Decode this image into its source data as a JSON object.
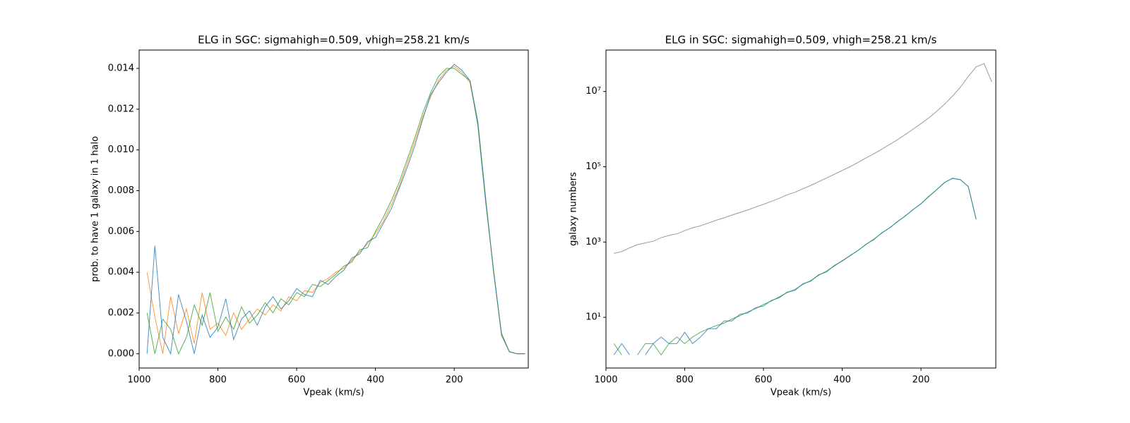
{
  "chart_data": [
    {
      "type": "line",
      "title": "ELG in SGC: sigmahigh=0.509, vhigh=258.21 km/s",
      "xlabel": "Vpeak (km/s)",
      "ylabel": "prob. to have 1 galaxy in 1 halo",
      "x": [
        980,
        960,
        940,
        920,
        900,
        880,
        860,
        840,
        820,
        800,
        780,
        760,
        740,
        720,
        700,
        680,
        660,
        640,
        620,
        600,
        580,
        560,
        540,
        520,
        500,
        480,
        460,
        440,
        420,
        400,
        380,
        360,
        340,
        320,
        300,
        280,
        260,
        240,
        220,
        200,
        180,
        160,
        140,
        120,
        100,
        80,
        60,
        40,
        20
      ],
      "xlim": [
        1000,
        12
      ],
      "xticks": [
        1000,
        800,
        600,
        400,
        200
      ],
      "ylim": [
        -0.0007,
        0.0149
      ],
      "yticks": [
        {
          "value": 0,
          "label": "0.000"
        },
        {
          "value": 0.002,
          "label": "0.002"
        },
        {
          "value": 0.004,
          "label": "0.004"
        },
        {
          "value": 0.006,
          "label": "0.006"
        },
        {
          "value": 0.008,
          "label": "0.008"
        },
        {
          "value": 0.01,
          "label": "0.010"
        },
        {
          "value": 0.012,
          "label": "0.012"
        },
        {
          "value": 0.014,
          "label": "0.014"
        }
      ],
      "yscale": "linear",
      "series": [
        {
          "color": "#ff7f0e",
          "values": [
            0.004,
            0.0018,
            0.0,
            0.0028,
            0.001,
            0.0022,
            0.0005,
            0.003,
            0.0012,
            0.0015,
            0.0009,
            0.002,
            0.0012,
            0.0017,
            0.0022,
            0.0019,
            0.0024,
            0.0021,
            0.0028,
            0.0026,
            0.0031,
            0.003,
            0.0035,
            0.0037,
            0.004,
            0.0042,
            0.0046,
            0.005,
            0.0054,
            0.0059,
            0.0065,
            0.0073,
            0.0082,
            0.0093,
            0.0104,
            0.0116,
            0.0126,
            0.0134,
            0.0139,
            0.0141,
            0.0138,
            0.0133,
            0.0113,
            0.0075,
            0.004,
            0.001,
            0.0001,
            0.0,
            0.0
          ]
        },
        {
          "color": "#2ca02c",
          "values": [
            0.002,
            0.0,
            0.0017,
            0.0012,
            0.0,
            0.0008,
            0.0024,
            0.0014,
            0.003,
            0.0011,
            0.0018,
            0.0012,
            0.0023,
            0.0015,
            0.0019,
            0.0025,
            0.002,
            0.0027,
            0.0024,
            0.003,
            0.0028,
            0.0034,
            0.0033,
            0.0036,
            0.0039,
            0.0043,
            0.0045,
            0.0051,
            0.0052,
            0.006,
            0.0067,
            0.0075,
            0.0084,
            0.0095,
            0.0106,
            0.0118,
            0.0128,
            0.0136,
            0.014,
            0.014,
            0.0137,
            0.0134,
            0.0114,
            0.0076,
            0.004,
            0.001,
            0.0001,
            0.0,
            0.0
          ]
        },
        {
          "color": "#1f77b4",
          "values": [
            0.0,
            0.0053,
            0.0008,
            0.0,
            0.0029,
            0.0016,
            0.0,
            0.0019,
            0.0008,
            0.0013,
            0.0027,
            0.0007,
            0.0017,
            0.0021,
            0.0014,
            0.0023,
            0.0028,
            0.0022,
            0.0026,
            0.0032,
            0.0029,
            0.0028,
            0.0036,
            0.0034,
            0.0038,
            0.0041,
            0.0047,
            0.0049,
            0.0055,
            0.0057,
            0.0064,
            0.0071,
            0.0081,
            0.0091,
            0.0102,
            0.0115,
            0.0127,
            0.0133,
            0.0138,
            0.0142,
            0.0139,
            0.0134,
            0.0112,
            0.0074,
            0.0041,
            0.0009,
            0.0001,
            0.0,
            0.0
          ]
        }
      ]
    },
    {
      "type": "line",
      "title": "ELG in SGC: sigmahigh=0.509, vhigh=258.21 km/s",
      "xlabel": "Vpeak (km/s)",
      "ylabel": "galaxy numbers",
      "x": [
        980,
        960,
        940,
        920,
        900,
        880,
        860,
        840,
        820,
        800,
        780,
        760,
        740,
        720,
        700,
        680,
        660,
        640,
        620,
        600,
        580,
        560,
        540,
        520,
        500,
        480,
        460,
        440,
        420,
        400,
        380,
        360,
        340,
        320,
        300,
        280,
        260,
        240,
        220,
        200,
        180,
        160,
        140,
        120,
        100,
        80,
        60,
        40,
        20
      ],
      "xlim": [
        1000,
        10
      ],
      "xticks": [
        1000,
        800,
        600,
        400,
        200
      ],
      "ylim": [
        0.45,
        126000000
      ],
      "yticks": [
        {
          "value": 10,
          "label": "10¹"
        },
        {
          "value": 1000,
          "label": "10³"
        },
        {
          "value": 100000,
          "label": "10⁵"
        },
        {
          "value": 10000000,
          "label": "10⁷"
        }
      ],
      "yscale": "log",
      "series": [
        {
          "color": "#7f7f7f",
          "values": [
            500,
            560,
            700,
            850,
            950,
            1050,
            1300,
            1500,
            1650,
            2000,
            2400,
            2700,
            3200,
            3800,
            4400,
            5200,
            6100,
            7100,
            8500,
            10000,
            12000,
            14500,
            18000,
            21000,
            26000,
            32000,
            40000,
            50000,
            63000,
            80000,
            100000,
            130000,
            170000,
            220000,
            290000,
            390000,
            520000,
            720000,
            1000000,
            1400000,
            2000000,
            3000000,
            4600000,
            7500000,
            13000000,
            25000000,
            45000000,
            55000000,
            18000000
          ]
        },
        {
          "color": "#2ca02c",
          "values": [
            2,
            1,
            null,
            1,
            2,
            2,
            1,
            2,
            3,
            2,
            3,
            4,
            5,
            6,
            7,
            9,
            11,
            14,
            17,
            22,
            27,
            35,
            45,
            55,
            75,
            95,
            130,
            170,
            230,
            320,
            430,
            600,
            850,
            1200,
            1700,
            2400,
            3400,
            5000,
            7200,
            10500,
            16000,
            25000,
            38000,
            50000,
            45000,
            30000,
            4000,
            null,
            null
          ]
        },
        {
          "color": "#1f77b4",
          "values": [
            1,
            2,
            1,
            null,
            1,
            2,
            3,
            2,
            2,
            4,
            2,
            3,
            5,
            5,
            8,
            8,
            12,
            13,
            18,
            20,
            28,
            33,
            47,
            52,
            78,
            90,
            135,
            160,
            240,
            310,
            440,
            590,
            870,
            1150,
            1750,
            2350,
            3500,
            4900,
            7300,
            10300,
            16500,
            24500,
            38500,
            49000,
            45500,
            29500,
            4100,
            null,
            null
          ]
        }
      ]
    }
  ]
}
